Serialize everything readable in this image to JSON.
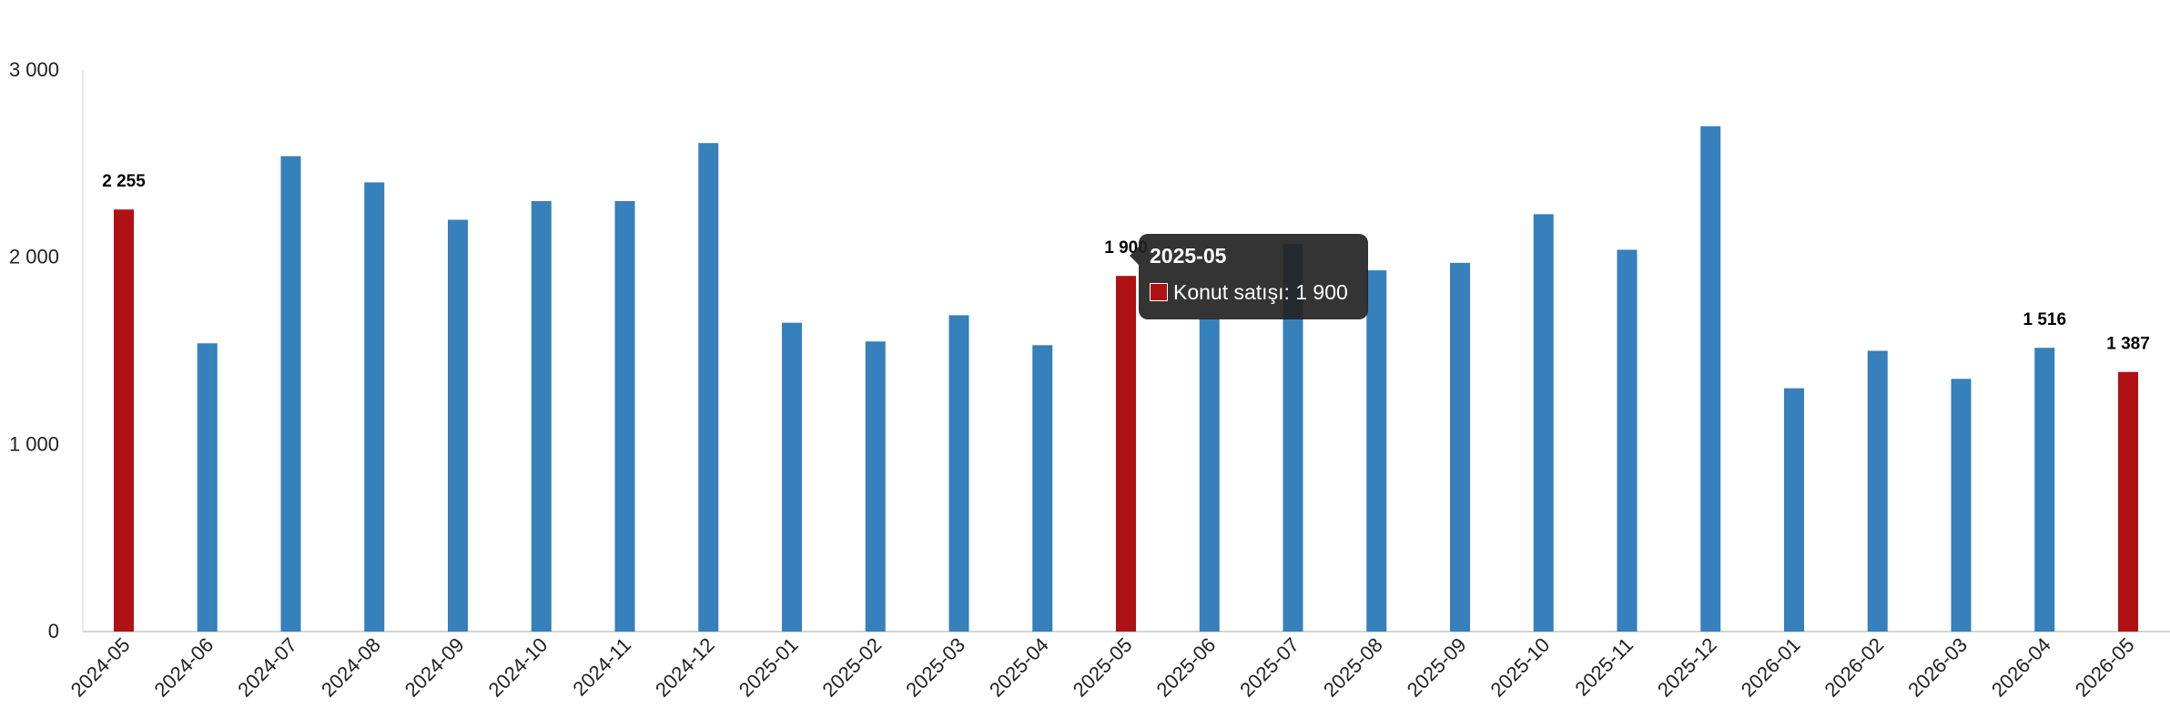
{
  "chart_data": {
    "type": "bar",
    "title": "",
    "xlabel": "",
    "ylabel": "",
    "ylim": [
      0,
      3000
    ],
    "yticks": [
      {
        "value": 0,
        "label": "0"
      },
      {
        "value": 1000,
        "label": "1 000"
      },
      {
        "value": 2000,
        "label": "2 000"
      },
      {
        "value": 3000,
        "label": "3 000"
      }
    ],
    "categories": [
      "2024-05",
      "2024-06",
      "2024-07",
      "2024-08",
      "2024-09",
      "2024-10",
      "2024-11",
      "2024-12",
      "2025-01",
      "2025-02",
      "2025-03",
      "2025-04",
      "2025-05",
      "2025-06",
      "2025-07",
      "2025-08",
      "2025-09",
      "2025-10",
      "2025-11",
      "2025-12",
      "2026-01",
      "2026-02",
      "2026-03",
      "2026-04",
      "2026-05"
    ],
    "series": [
      {
        "name": "Konut satışı",
        "values": [
          2255,
          1540,
          2540,
          2400,
          2200,
          2300,
          2300,
          2610,
          1650,
          1550,
          1690,
          1530,
          1900,
          1670,
          2070,
          1930,
          1970,
          2230,
          2040,
          2700,
          1300,
          1500,
          1350,
          1516,
          1387
        ]
      }
    ],
    "grid": false,
    "legend": "none",
    "colors": {
      "default": "#3680BB",
      "highlight": "#B01114",
      "axis": "#d4d4d4",
      "tick_text": "#222222",
      "label_text": "#000000"
    },
    "highlighted_indices": [
      0,
      12,
      24
    ],
    "data_labels": [
      {
        "index": 0,
        "text": "2 255"
      },
      {
        "index": 12,
        "text": "1 900"
      },
      {
        "index": 23,
        "text": "1 516"
      },
      {
        "index": 24,
        "text": "1 387"
      }
    ],
    "tooltip": {
      "index": 12,
      "title": "2025-05",
      "series_label": "Konut satışı",
      "value_text": "1 900"
    }
  }
}
